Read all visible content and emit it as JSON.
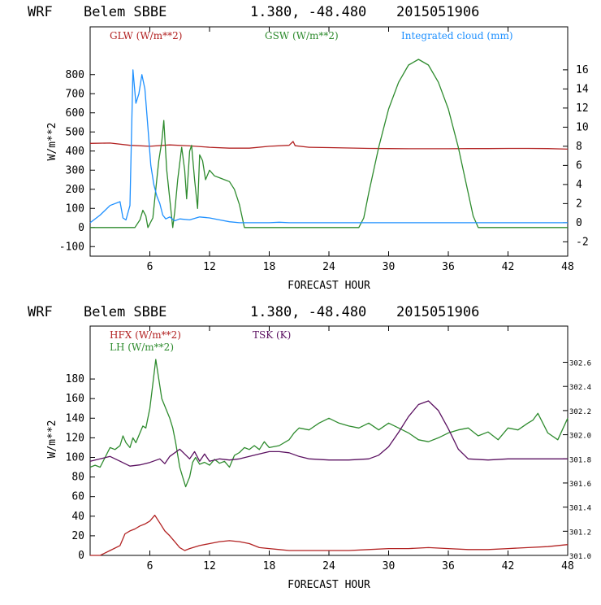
{
  "chart_data": [
    {
      "type": "line",
      "header": {
        "model": "WRF",
        "station": "Belem SBBE",
        "coords": "1.380, -48.480",
        "init": "2015051906"
      },
      "xlabel": "FORECAST HOUR",
      "ylabel": "W/m**2",
      "xlim": [
        0,
        48
      ],
      "ylim": [
        -150,
        1050
      ],
      "y2lim": [
        -3.5,
        20.5
      ],
      "xticks": [
        6,
        12,
        18,
        24,
        30,
        36,
        42,
        48
      ],
      "yticks": [
        -100,
        0,
        100,
        200,
        300,
        400,
        500,
        600,
        700,
        800
      ],
      "y2ticks": [
        -2,
        0,
        2,
        4,
        6,
        8,
        10,
        12,
        14,
        16
      ],
      "series": [
        {
          "name": "GLW (W/m**2)",
          "color": "#b22222",
          "axis": "left",
          "x": [
            0,
            2,
            4,
            6,
            8,
            10,
            12,
            14,
            16,
            18,
            20,
            20.4,
            20.6,
            22,
            24,
            26,
            28,
            30,
            32,
            34,
            36,
            38,
            40,
            42,
            44,
            46,
            48
          ],
          "values": [
            440,
            442,
            430,
            425,
            432,
            427,
            420,
            415,
            415,
            425,
            430,
            450,
            428,
            420,
            418,
            416,
            414,
            413,
            412,
            412,
            412,
            413,
            413,
            414,
            414,
            413,
            410
          ]
        },
        {
          "name": "GSW (W/m**2)",
          "color": "#2e8b2e",
          "axis": "left",
          "x": [
            0,
            4.5,
            5,
            5.3,
            5.6,
            5.8,
            6.3,
            6.6,
            6.9,
            7.2,
            7.4,
            7.7,
            8,
            8.3,
            8.5,
            8.8,
            9.2,
            9.5,
            9.7,
            10,
            10.2,
            10.5,
            10.8,
            11,
            11.3,
            11.6,
            12,
            12.5,
            13,
            13.5,
            14,
            14.5,
            15,
            15.5,
            26,
            27,
            27.5,
            28,
            29,
            30,
            31,
            32,
            33,
            34,
            35,
            36,
            37,
            38,
            38.5,
            39,
            39.5,
            48
          ],
          "values": [
            0,
            0,
            40,
            90,
            60,
            0,
            50,
            200,
            350,
            450,
            560,
            300,
            150,
            0,
            80,
            250,
            420,
            300,
            150,
            400,
            430,
            250,
            100,
            380,
            350,
            250,
            300,
            270,
            260,
            250,
            240,
            200,
            120,
            0,
            0,
            0,
            50,
            180,
            420,
            620,
            760,
            850,
            880,
            850,
            760,
            620,
            420,
            180,
            60,
            0,
            0,
            0
          ]
        },
        {
          "name": "Integrated cloud (mm)",
          "color": "#1e90ff",
          "axis": "right",
          "x": [
            0,
            1,
            2,
            3,
            3.3,
            3.6,
            4,
            4.3,
            4.6,
            4.9,
            5.2,
            5.5,
            5.8,
            6.1,
            6.4,
            6.7,
            7,
            7.3,
            7.6,
            8,
            8.5,
            9,
            10,
            11,
            12,
            13,
            14,
            15,
            18,
            19,
            20,
            48
          ],
          "values": [
            0,
            0.8,
            1.8,
            2.2,
            0.5,
            0.3,
            1.8,
            16,
            12.5,
            13.5,
            15.5,
            14,
            10,
            6,
            4,
            2.8,
            2,
            0.8,
            0.4,
            0.6,
            0.2,
            0.4,
            0.3,
            0.6,
            0.5,
            0.3,
            0.1,
            0,
            0,
            0.05,
            0,
            0
          ]
        }
      ]
    },
    {
      "type": "line",
      "header": {
        "model": "WRF",
        "station": "Belem SBBE",
        "coords": "1.380, -48.480",
        "init": "2015051906"
      },
      "xlabel": "FORECAST HOUR",
      "ylabel": "W/m**2",
      "xlim": [
        0,
        48
      ],
      "ylim": [
        0,
        234
      ],
      "y2lim": [
        301.0,
        302.9
      ],
      "xticks": [
        6,
        12,
        18,
        24,
        30,
        36,
        42,
        48
      ],
      "yticks": [
        0,
        20,
        40,
        60,
        80,
        100,
        120,
        140,
        160,
        180
      ],
      "y2ticks": [
        301.0,
        301.2,
        301.4,
        301.6,
        301.8,
        302.0,
        302.2,
        302.4,
        302.6
      ],
      "y2tick_labels": [
        "301.0",
        "301.2",
        "301.4",
        "301.6",
        "301.8",
        "302.0",
        "302.2",
        "302.4",
        "302.6"
      ],
      "series": [
        {
          "name": "HFX (W/m**2)",
          "color": "#b22222",
          "axis": "left",
          "x": [
            0,
            1,
            2,
            3,
            3.5,
            4,
            4.5,
            5,
            5.5,
            6,
            6.5,
            7,
            7.5,
            8,
            8.5,
            9,
            9.5,
            10,
            11,
            12,
            13,
            14,
            15,
            16,
            17,
            18,
            19,
            20,
            22,
            24,
            26,
            28,
            30,
            32,
            34,
            36,
            38,
            40,
            42,
            44,
            46,
            48
          ],
          "values": [
            0,
            0,
            5,
            10,
            22,
            25,
            27,
            30,
            32,
            35,
            41,
            33,
            25,
            20,
            14,
            8,
            5,
            7,
            10,
            12,
            14,
            15,
            14,
            12,
            8,
            7,
            6,
            5,
            5,
            5,
            5,
            6,
            7,
            7,
            8,
            7,
            6,
            6,
            7,
            8,
            9,
            11
          ]
        },
        {
          "name": "LH (W/m**2)",
          "color": "#2e8b2e",
          "axis": "left",
          "x": [
            0,
            0.5,
            1,
            1.5,
            2,
            2.5,
            3,
            3.3,
            3.6,
            4,
            4.3,
            4.6,
            5,
            5.3,
            5.6,
            6,
            6.3,
            6.6,
            6.9,
            7.2,
            7.6,
            8,
            8.3,
            8.6,
            9,
            9.3,
            9.6,
            10,
            10.3,
            10.6,
            11,
            11.5,
            12,
            12.5,
            13,
            13.5,
            14,
            14.5,
            15,
            15.5,
            16,
            16.5,
            17,
            17.5,
            18,
            19,
            20,
            20.5,
            21,
            22,
            23,
            24,
            25,
            26,
            27,
            28,
            29,
            30,
            31,
            32,
            33,
            34,
            35,
            36,
            37,
            38,
            39,
            40,
            41,
            42,
            43,
            44,
            44.5,
            45,
            45.5,
            46,
            47,
            48
          ],
          "values": [
            90,
            92,
            90,
            100,
            110,
            108,
            112,
            122,
            115,
            110,
            120,
            115,
            125,
            132,
            130,
            150,
            175,
            200,
            180,
            160,
            150,
            140,
            130,
            115,
            90,
            80,
            70,
            80,
            95,
            100,
            93,
            95,
            92,
            98,
            94,
            96,
            90,
            102,
            105,
            110,
            108,
            112,
            108,
            116,
            110,
            112,
            118,
            125,
            130,
            128,
            135,
            140,
            135,
            132,
            130,
            135,
            128,
            135,
            130,
            125,
            118,
            116,
            120,
            125,
            128,
            130,
            122,
            126,
            118,
            130,
            128,
            135,
            138,
            145,
            135,
            125,
            118,
            140
          ]
        },
        {
          "name": "TSK (K)",
          "color": "#5a1060",
          "axis": "right",
          "x": [
            0,
            1,
            2,
            3,
            4,
            5,
            6,
            7,
            7.5,
            8,
            9,
            9.5,
            10,
            10.5,
            11,
            11.5,
            12,
            13,
            14,
            15,
            16,
            17,
            18,
            19,
            20,
            21,
            22,
            24,
            26,
            28,
            29,
            30,
            31,
            32,
            33,
            34,
            35,
            36,
            37,
            38,
            40,
            42,
            44,
            46,
            48
          ],
          "values": [
            301.78,
            301.8,
            301.82,
            301.78,
            301.74,
            301.75,
            301.77,
            301.8,
            301.76,
            301.82,
            301.88,
            301.84,
            301.8,
            301.86,
            301.78,
            301.84,
            301.78,
            301.8,
            301.79,
            301.8,
            301.82,
            301.84,
            301.86,
            301.86,
            301.85,
            301.82,
            301.8,
            301.79,
            301.79,
            301.8,
            301.83,
            301.9,
            302.02,
            302.15,
            302.25,
            302.28,
            302.2,
            302.05,
            301.88,
            301.8,
            301.79,
            301.8,
            301.8,
            301.8,
            301.8
          ]
        }
      ]
    }
  ]
}
